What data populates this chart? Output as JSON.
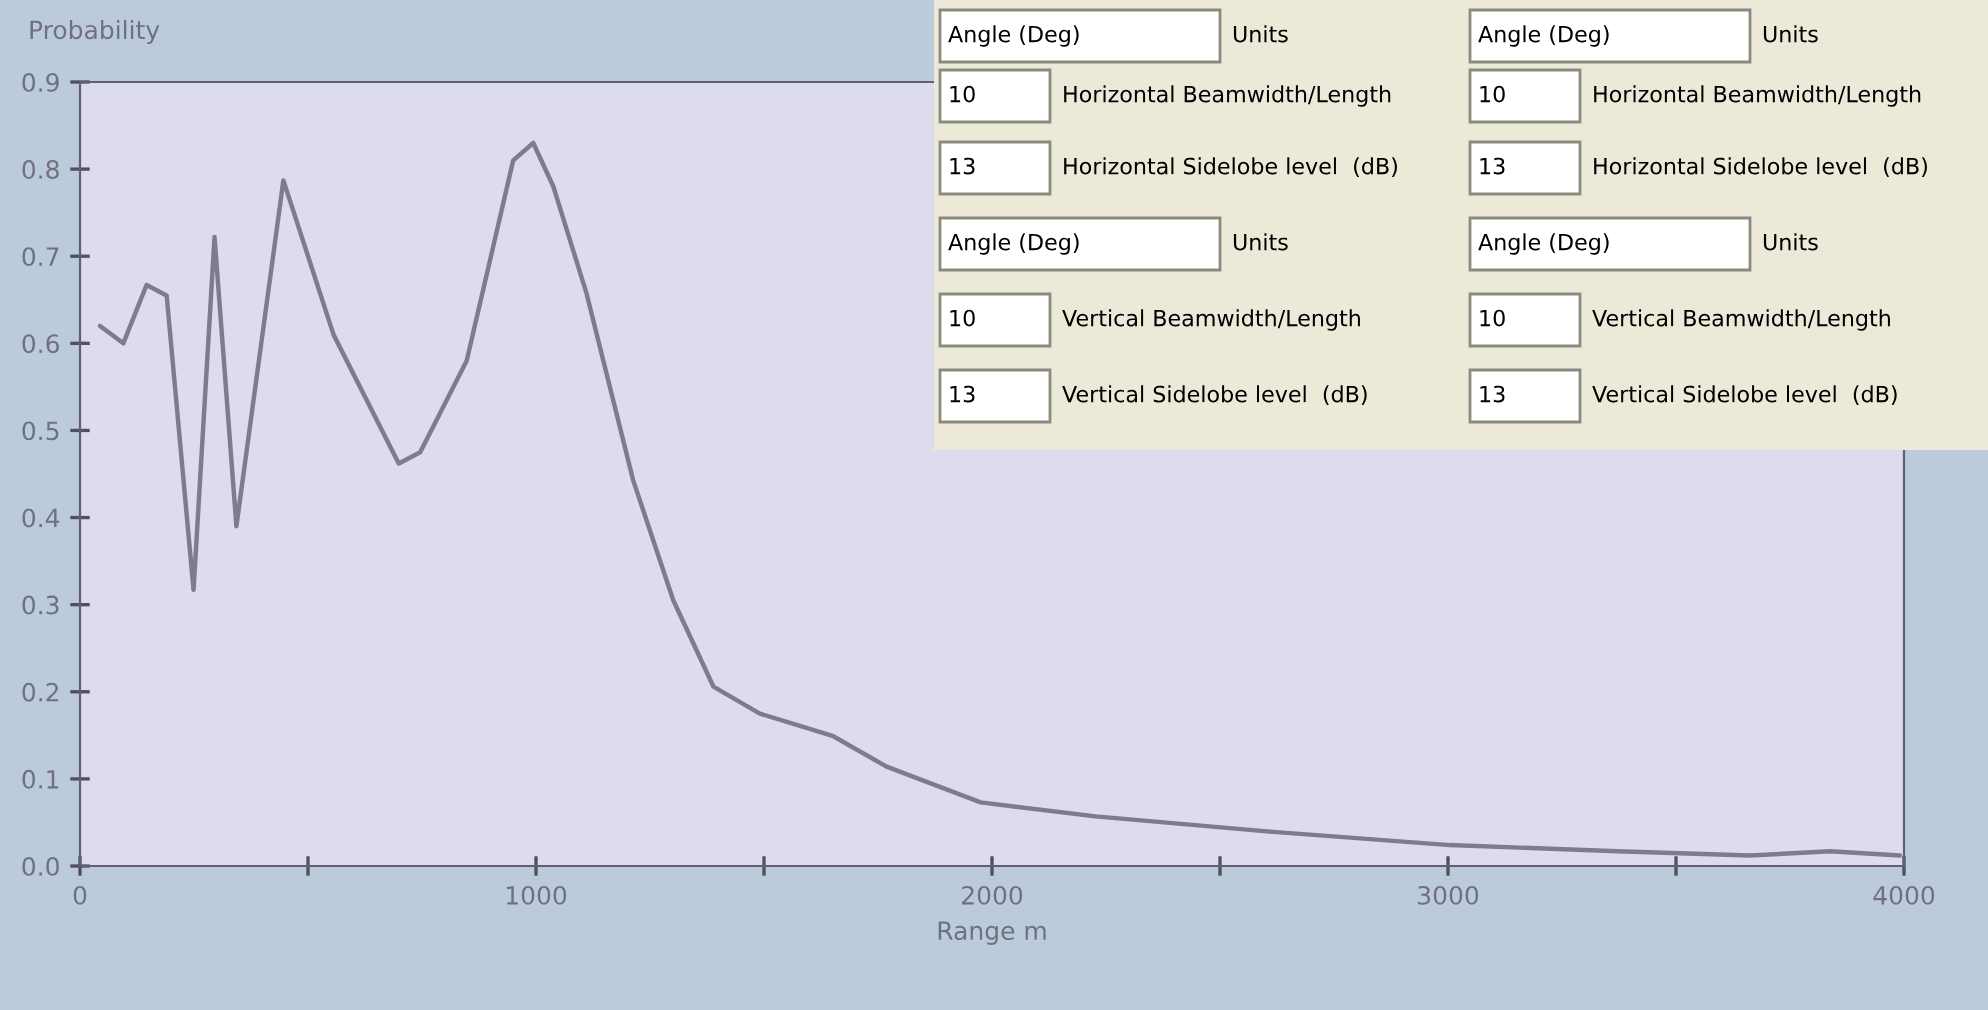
{
  "chart_data": {
    "type": "line",
    "ylabel": "Probability",
    "xlabel": "Range m",
    "x": [
      44,
      95,
      146,
      190,
      249,
      295,
      343,
      446,
      556,
      699,
      746,
      848,
      950,
      994,
      1038,
      1111,
      1213,
      1301,
      1389,
      1491,
      1652,
      1769,
      1975,
      2227,
      2596,
      3004,
      3372,
      3662,
      3838,
      3991
    ],
    "series": [
      {
        "color": "#7c7c8c",
        "values": [
          0.62,
          0.6,
          0.667,
          0.655,
          0.317,
          0.722,
          0.39,
          0.787,
          0.61,
          0.462,
          0.475,
          0.58,
          0.81,
          0.83,
          0.78,
          0.657,
          0.443,
          0.305,
          0.206,
          0.175,
          0.149,
          0.114,
          0.073,
          0.057,
          0.04,
          0.024,
          0.017,
          0.012,
          0.017,
          0.012
        ]
      }
    ],
    "xlim": [
      0,
      4000
    ],
    "ylim": [
      0,
      0.9
    ],
    "xticks": [
      0,
      {
        "value": 500,
        "label": null
      },
      1000,
      {
        "value": 1500,
        "label": null
      },
      2000,
      {
        "value": 2500,
        "label": null
      },
      3000,
      {
        "value": 3500,
        "label": null
      },
      4000
    ],
    "yticks": [
      {
        "value": 0,
        "label": "0.0"
      },
      0.1,
      0.2,
      0.3,
      0.4,
      0.5,
      0.6,
      0.7,
      0.8,
      0.9
    ],
    "grid": false,
    "marker": "none",
    "line_style": "solid",
    "annotations": [
      "Angle (Deg)",
      "Units",
      "Angle (Deg)",
      "Units",
      "10",
      "Horizontal Beamwidth/Length",
      "10",
      "Horizontal Beamwidth/Length",
      "13",
      "Horizontal Sidelobe level  (dB)",
      "13",
      "Horizontal Sidelobe level  (dB)",
      "Angle (Deg)",
      "Units",
      "Angle (Deg)",
      "Units",
      "10",
      "Vertical Beamwidth/Length",
      "10",
      "Vertical Beamwidth/Length",
      "13",
      "Vertical Sidelobe level  (dB)",
      "13",
      "Vertical Sidelobe level  (dB)"
    ]
  }
}
